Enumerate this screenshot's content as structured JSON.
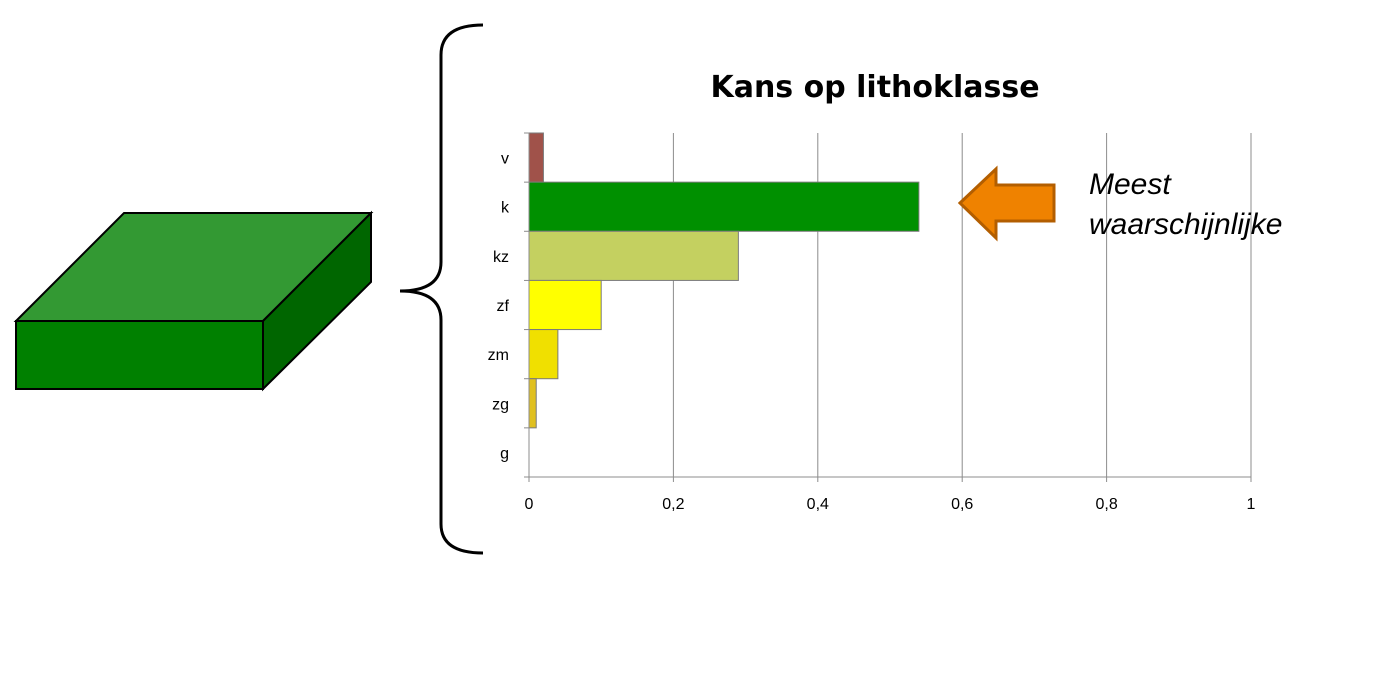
{
  "callout": {
    "line1": "Meest",
    "line2": "waarschijnlijke",
    "arrow_icon": "left-arrow-icon",
    "arrow_color": "#ef8200"
  },
  "block": {
    "icon": "3d-block-icon",
    "front_color": "#008000",
    "top_color": "#339933",
    "side_color": "#006600"
  },
  "chart_data": {
    "type": "bar",
    "orientation": "horizontal",
    "title": "Kans op lithoklasse",
    "categories": [
      "v",
      "k",
      "kz",
      "zf",
      "zm",
      "zg",
      "g"
    ],
    "values": [
      0.02,
      0.54,
      0.29,
      0.1,
      0.04,
      0.01,
      0.0
    ],
    "colors": [
      "#a0524a",
      "#009000",
      "#c4d060",
      "#ffff00",
      "#f0e000",
      "#e0c020",
      "#cccccc"
    ],
    "x_ticks": [
      "0",
      "0,2",
      "0,4",
      "0,6",
      "0,8",
      "1"
    ],
    "xlim": [
      0,
      1
    ],
    "xlabel": "",
    "ylabel": "",
    "grid": true
  }
}
